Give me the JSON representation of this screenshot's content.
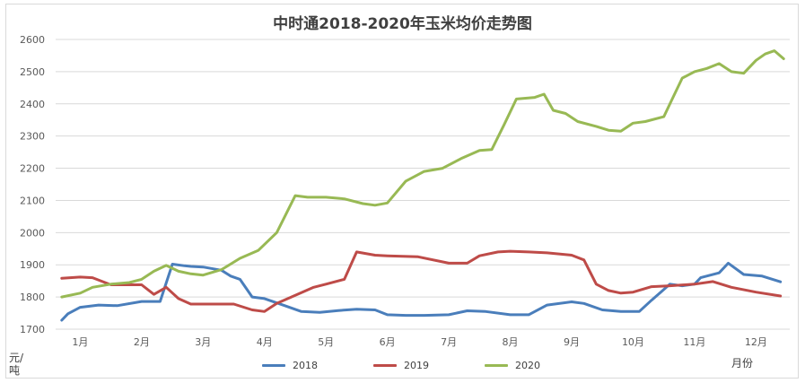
{
  "chart_data": {
    "type": "line",
    "title": "中时通2018-2020年玉米均价走势图",
    "xlabel": "月份",
    "ylabel": "元/吨",
    "ylim": [
      1700,
      2600
    ],
    "yticks": [
      1700,
      1800,
      1900,
      2000,
      2100,
      2200,
      2300,
      2400,
      2500,
      2600
    ],
    "categories": [
      "1月",
      "2月",
      "3月",
      "4月",
      "5月",
      "6月",
      "7月",
      "8月",
      "9月",
      "10月",
      "11月",
      "12月"
    ],
    "grid": true,
    "legend_position": "bottom",
    "x_note": "x values are month positions (1 = January, 12.4 = mid-December)",
    "series": [
      {
        "name": "2018",
        "color": "#4a7ebb",
        "x": [
          0.7,
          0.8,
          1.0,
          1.3,
          1.6,
          2.0,
          2.3,
          2.5,
          2.7,
          2.8,
          3.0,
          3.3,
          3.45,
          3.6,
          3.8,
          4.0,
          4.3,
          4.6,
          4.9,
          5.2,
          5.5,
          5.8,
          6.0,
          6.3,
          6.6,
          7.0,
          7.3,
          7.6,
          8.0,
          8.3,
          8.6,
          9.0,
          9.2,
          9.5,
          9.8,
          10.1,
          10.3,
          10.45,
          10.6,
          10.8,
          11.0,
          11.1,
          11.4,
          11.55,
          11.8,
          12.1,
          12.4
        ],
        "values": [
          1728,
          1748,
          1768,
          1775,
          1773,
          1786,
          1786,
          1902,
          1897,
          1895,
          1893,
          1883,
          1865,
          1855,
          1800,
          1795,
          1775,
          1755,
          1752,
          1758,
          1762,
          1760,
          1745,
          1743,
          1743,
          1745,
          1757,
          1755,
          1745,
          1745,
          1775,
          1785,
          1780,
          1760,
          1755,
          1755,
          1790,
          1815,
          1840,
          1835,
          1840,
          1860,
          1875,
          1905,
          1870,
          1865,
          1847
        ]
      },
      {
        "name": "2019",
        "color": "#be4b48",
        "x": [
          0.7,
          1.0,
          1.2,
          1.5,
          2.0,
          2.2,
          2.4,
          2.6,
          2.8,
          3.0,
          3.3,
          3.5,
          3.8,
          4.0,
          4.2,
          4.5,
          4.8,
          5.0,
          5.3,
          5.5,
          5.8,
          6.0,
          6.5,
          7.0,
          7.3,
          7.5,
          7.8,
          8.0,
          8.3,
          8.6,
          9.0,
          9.2,
          9.4,
          9.6,
          9.8,
          10.0,
          10.3,
          10.6,
          11.0,
          11.3,
          11.6,
          12.0,
          12.4
        ],
        "values": [
          1858,
          1862,
          1860,
          1838,
          1838,
          1808,
          1830,
          1795,
          1778,
          1778,
          1778,
          1778,
          1760,
          1755,
          1780,
          1805,
          1830,
          1840,
          1855,
          1940,
          1930,
          1928,
          1925,
          1905,
          1905,
          1928,
          1940,
          1942,
          1940,
          1937,
          1930,
          1915,
          1840,
          1820,
          1812,
          1815,
          1832,
          1835,
          1840,
          1848,
          1830,
          1815,
          1803
        ]
      },
      {
        "name": "2020",
        "color": "#98b954",
        "x": [
          0.7,
          1.0,
          1.2,
          1.5,
          1.8,
          2.0,
          2.2,
          2.4,
          2.6,
          2.8,
          3.0,
          3.3,
          3.6,
          3.9,
          4.2,
          4.5,
          4.7,
          5.0,
          5.3,
          5.6,
          5.8,
          6.0,
          6.3,
          6.6,
          6.9,
          7.2,
          7.5,
          7.7,
          7.9,
          8.1,
          8.4,
          8.55,
          8.7,
          8.9,
          9.1,
          9.4,
          9.6,
          9.8,
          10.0,
          10.2,
          10.5,
          10.65,
          10.8,
          11.0,
          11.2,
          11.4,
          11.6,
          11.8,
          12.0,
          12.15,
          12.3,
          12.45
        ],
        "values": [
          1800,
          1812,
          1830,
          1840,
          1845,
          1855,
          1880,
          1898,
          1880,
          1872,
          1868,
          1885,
          1920,
          1945,
          2000,
          2115,
          2110,
          2110,
          2105,
          2090,
          2085,
          2092,
          2160,
          2190,
          2200,
          2230,
          2255,
          2258,
          2335,
          2415,
          2420,
          2430,
          2380,
          2370,
          2345,
          2330,
          2318,
          2315,
          2340,
          2345,
          2360,
          2420,
          2480,
          2500,
          2510,
          2525,
          2500,
          2495,
          2535,
          2555,
          2565,
          2540
        ]
      }
    ]
  }
}
